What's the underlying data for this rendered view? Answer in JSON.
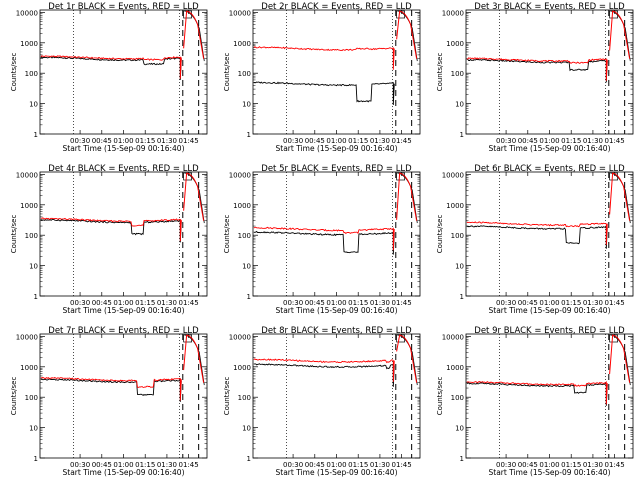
{
  "ylabel": "Counts/sec",
  "xlabel": "Start Time (15-Sep-09 00:16:40)",
  "xticks": [
    "00:30",
    "00:45",
    "01:00",
    "01:15",
    "01:30",
    "01:45"
  ],
  "yticks": [
    "1",
    "10",
    "100",
    "1000",
    "10000"
  ],
  "colors": {
    "events": "#000000",
    "lld": "#ff0000",
    "axes": "#000000"
  },
  "chart_data": [
    {
      "type": "line",
      "title": "Det 1r BLACK = Events, RED = LLD",
      "yscale": "log",
      "ylim": [
        1,
        12000
      ],
      "series": [
        {
          "name": "Events",
          "level": 300,
          "dip": 200,
          "dip_at": [
            0.62,
            0.74
          ]
        },
        {
          "name": "LLD",
          "level": 330,
          "dip": 280,
          "dip_at": [
            0.62,
            0.74
          ]
        }
      ]
    },
    {
      "type": "line",
      "title": "Det 2r BLACK = Events, RED = LLD",
      "yscale": "log",
      "ylim": [
        1,
        12000
      ],
      "series": [
        {
          "name": "Events",
          "level": 45,
          "dip": 12,
          "dip_at": [
            0.62,
            0.71
          ]
        },
        {
          "name": "LLD",
          "level": 650,
          "dip": 640,
          "dip_at": [
            0.62,
            0.71
          ]
        }
      ]
    },
    {
      "type": "line",
      "title": "Det 3r BLACK = Events, RED = LLD",
      "yscale": "log",
      "ylim": [
        1,
        12000
      ],
      "series": [
        {
          "name": "Events",
          "level": 250,
          "dip": 130,
          "dip_at": [
            0.62,
            0.73
          ]
        },
        {
          "name": "LLD",
          "level": 280,
          "dip": 220,
          "dip_at": [
            0.62,
            0.73
          ]
        }
      ]
    },
    {
      "type": "line",
      "title": "Det 4r BLACK = Events, RED = LLD",
      "yscale": "log",
      "ylim": [
        1,
        12000
      ],
      "series": [
        {
          "name": "Events",
          "level": 290,
          "dip": 110,
          "dip_at": [
            0.55,
            0.62
          ]
        },
        {
          "name": "LLD",
          "level": 320,
          "dip": 210,
          "dip_at": [
            0.55,
            0.62
          ]
        }
      ]
    },
    {
      "type": "line",
      "title": "Det 5r BLACK = Events, RED = LLD",
      "yscale": "log",
      "ylim": [
        1,
        12000
      ],
      "series": [
        {
          "name": "Events",
          "level": 115,
          "dip": 28,
          "dip_at": [
            0.54,
            0.63
          ]
        },
        {
          "name": "LLD",
          "level": 160,
          "dip": 120,
          "dip_at": [
            0.54,
            0.63
          ]
        }
      ]
    },
    {
      "type": "line",
      "title": "Det 6r BLACK = Events, RED = LLD",
      "yscale": "log",
      "ylim": [
        1,
        12000
      ],
      "series": [
        {
          "name": "Events",
          "level": 180,
          "dip": 55,
          "dip_at": [
            0.6,
            0.68
          ]
        },
        {
          "name": "LLD",
          "level": 240,
          "dip": 200,
          "dip_at": [
            0.6,
            0.68
          ]
        }
      ]
    },
    {
      "type": "line",
      "title": "Det 7r BLACK = Events, RED = LLD",
      "yscale": "log",
      "ylim": [
        1,
        12000
      ],
      "series": [
        {
          "name": "Events",
          "level": 350,
          "dip": 120,
          "dip_at": [
            0.58,
            0.68
          ]
        },
        {
          "name": "LLD",
          "level": 390,
          "dip": 220,
          "dip_at": [
            0.58,
            0.68
          ]
        }
      ]
    },
    {
      "type": "line",
      "title": "Det 8r BLACK = Events, RED = LLD",
      "yscale": "log",
      "ylim": [
        1,
        12000
      ],
      "series": [
        {
          "name": "Events",
          "level": 1100,
          "dip": 900,
          "dip_at": [
            0.8,
            0.82
          ]
        },
        {
          "name": "LLD",
          "level": 1600,
          "dip": 1400,
          "dip_at": [
            0.8,
            0.82
          ]
        }
      ]
    },
    {
      "type": "line",
      "title": "Det 9r BLACK = Events, RED = LLD",
      "yscale": "log",
      "ylim": [
        1,
        12000
      ],
      "series": [
        {
          "name": "Events",
          "level": 260,
          "dip": 140,
          "dip_at": [
            0.65,
            0.72
          ]
        },
        {
          "name": "LLD",
          "level": 290,
          "dip": 240,
          "dip_at": [
            0.65,
            0.72
          ]
        }
      ]
    }
  ]
}
